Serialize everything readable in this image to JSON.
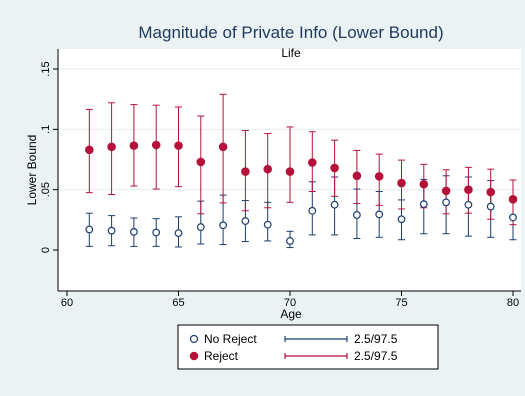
{
  "chart_data": {
    "type": "scatter",
    "title": "Magnitude of Private Info (Lower Bound)",
    "subtitle": "Life",
    "xlabel": "Age",
    "ylabel": "Lower Bound",
    "xlim": [
      60,
      80
    ],
    "ylim": [
      0,
      0.15
    ],
    "x_ticks": [
      "60",
      "65",
      "70",
      "75",
      "80"
    ],
    "y_ticks": [
      "0",
      ".05",
      ".1",
      ".15"
    ],
    "grid": "horizontal",
    "legend_position": "bottom",
    "colors": {
      "no_reject": "#1a3d6e",
      "reject": "#b5123a"
    },
    "series": [
      {
        "name": "No Reject",
        "ci_name": "2.5/97.5",
        "marker": "hollow-circle",
        "x": [
          61,
          62,
          63,
          64,
          65,
          66,
          67,
          68,
          69,
          70,
          71,
          72,
          73,
          74,
          75,
          76,
          77,
          78,
          79,
          80
        ],
        "y": [
          0.017,
          0.016,
          0.015,
          0.0145,
          0.014,
          0.019,
          0.0205,
          0.024,
          0.021,
          0.0075,
          0.0325,
          0.0375,
          0.029,
          0.0295,
          0.0255,
          0.038,
          0.0395,
          0.0375,
          0.036,
          0.027
        ],
        "lower": [
          0.003,
          0.0035,
          0.003,
          0.003,
          0.0025,
          0.005,
          0.0045,
          0.007,
          0.0075,
          0.002,
          0.0125,
          0.0125,
          0.0095,
          0.0105,
          0.0085,
          0.0135,
          0.0135,
          0.0115,
          0.0105,
          0.0085
        ],
        "upper": [
          0.0305,
          0.0285,
          0.0265,
          0.026,
          0.0275,
          0.0405,
          0.0455,
          0.041,
          0.0395,
          0.0155,
          0.0565,
          0.0605,
          0.0505,
          0.0485,
          0.0415,
          0.0585,
          0.0615,
          0.0605,
          0.0575,
          0.0435
        ]
      },
      {
        "name": "Reject",
        "ci_name": "2.5/97.5",
        "marker": "filled-circle",
        "x": [
          61,
          62,
          63,
          64,
          65,
          66,
          67,
          68,
          69,
          70,
          71,
          72,
          73,
          74,
          75,
          76,
          77,
          78,
          79,
          80
        ],
        "y": [
          0.083,
          0.0855,
          0.0865,
          0.087,
          0.0865,
          0.073,
          0.0855,
          0.065,
          0.067,
          0.065,
          0.0725,
          0.068,
          0.0615,
          0.061,
          0.0555,
          0.0545,
          0.049,
          0.05,
          0.048,
          0.042
        ],
        "lower": [
          0.0475,
          0.046,
          0.053,
          0.0505,
          0.0525,
          0.03,
          0.039,
          0.0325,
          0.035,
          0.0395,
          0.0485,
          0.0445,
          0.0385,
          0.037,
          0.034,
          0.035,
          0.03,
          0.0305,
          0.0255,
          0.021
        ],
        "upper": [
          0.1165,
          0.122,
          0.1205,
          0.12,
          0.1185,
          0.111,
          0.129,
          0.099,
          0.0965,
          0.102,
          0.098,
          0.091,
          0.0825,
          0.0795,
          0.0745,
          0.071,
          0.0665,
          0.0685,
          0.067,
          0.058
        ]
      }
    ]
  }
}
